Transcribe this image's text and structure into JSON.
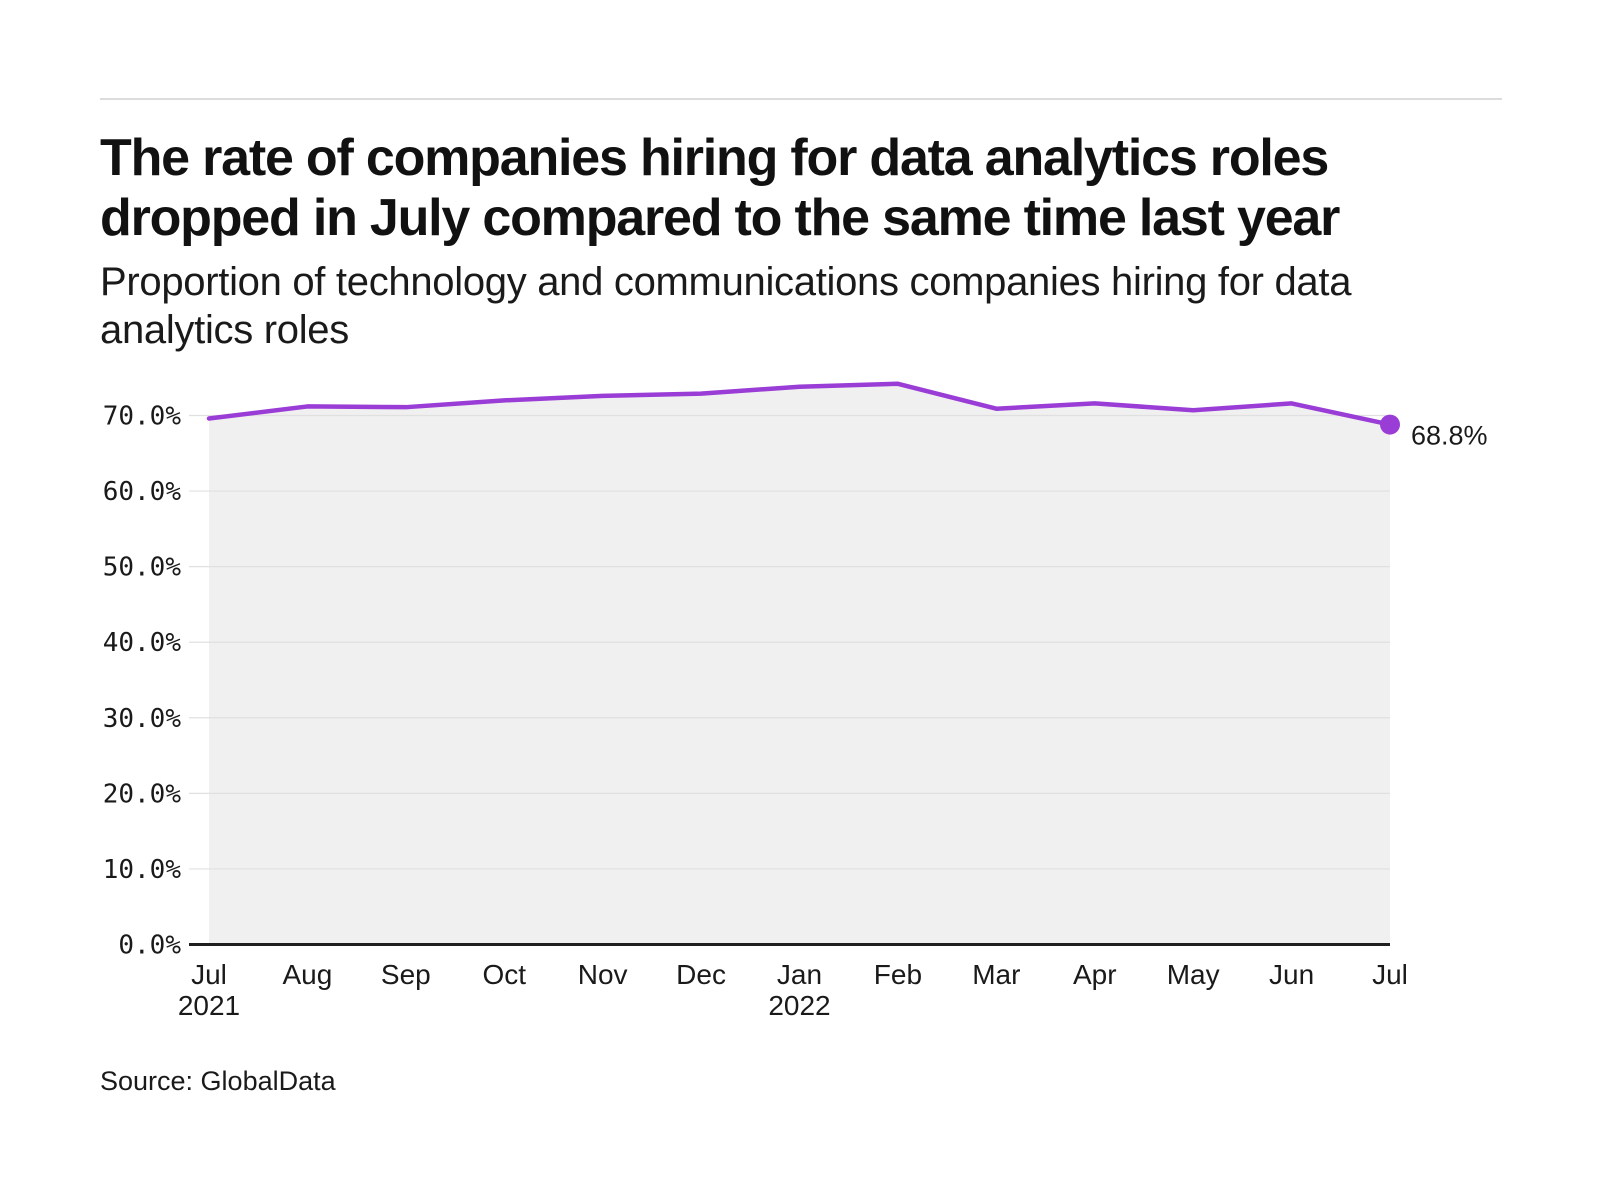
{
  "header": {
    "title": "The rate of companies hiring for data analytics roles\ndropped in July compared to the same time last year",
    "subtitle": "Proportion of technology and communications companies hiring for data\nanalytics roles"
  },
  "chart_data": {
    "type": "area",
    "title": "Proportion of technology and communications companies hiring for data analytics roles",
    "x": [
      "Jul 2021",
      "Aug 2021",
      "Sep 2021",
      "Oct 2021",
      "Nov 2021",
      "Dec 2021",
      "Jan 2022",
      "Feb 2022",
      "Mar 2022",
      "Apr 2022",
      "May 2022",
      "Jun 2022",
      "Jul 2022"
    ],
    "values": [
      69.6,
      71.2,
      71.1,
      72.0,
      72.6,
      72.9,
      73.8,
      74.2,
      70.9,
      71.6,
      70.7,
      71.6,
      68.8
    ],
    "x_ticks": [
      {
        "month": "Jul",
        "year": "2021"
      },
      {
        "month": "Aug"
      },
      {
        "month": "Sep"
      },
      {
        "month": "Oct"
      },
      {
        "month": "Nov"
      },
      {
        "month": "Dec"
      },
      {
        "month": "Jan",
        "year": "2022"
      },
      {
        "month": "Feb"
      },
      {
        "month": "Mar"
      },
      {
        "month": "Apr"
      },
      {
        "month": "May"
      },
      {
        "month": "Jun"
      },
      {
        "month": "Jul"
      }
    ],
    "y_ticks": [
      {
        "value": 70,
        "label": "70.0%"
      },
      {
        "value": 60,
        "label": "60.0%"
      },
      {
        "value": 50,
        "label": "50.0%"
      },
      {
        "value": 40,
        "label": "40.0%"
      },
      {
        "value": 30,
        "label": "30.0%"
      },
      {
        "value": 20,
        "label": "20.0%"
      },
      {
        "value": 10,
        "label": "10.0%"
      },
      {
        "value": 0,
        "label": "0.0%"
      }
    ],
    "ylim": [
      0,
      70
    ],
    "grid": true,
    "legend": "none",
    "end_label": "68.8%",
    "colors": {
      "line": "#9a3dd6",
      "area": "#f0f0f0",
      "grid": "#e0e0e0",
      "axis": "#1f1f1f",
      "text": "#1a1a1a"
    }
  },
  "footer": {
    "source": "Source: GlobalData"
  }
}
